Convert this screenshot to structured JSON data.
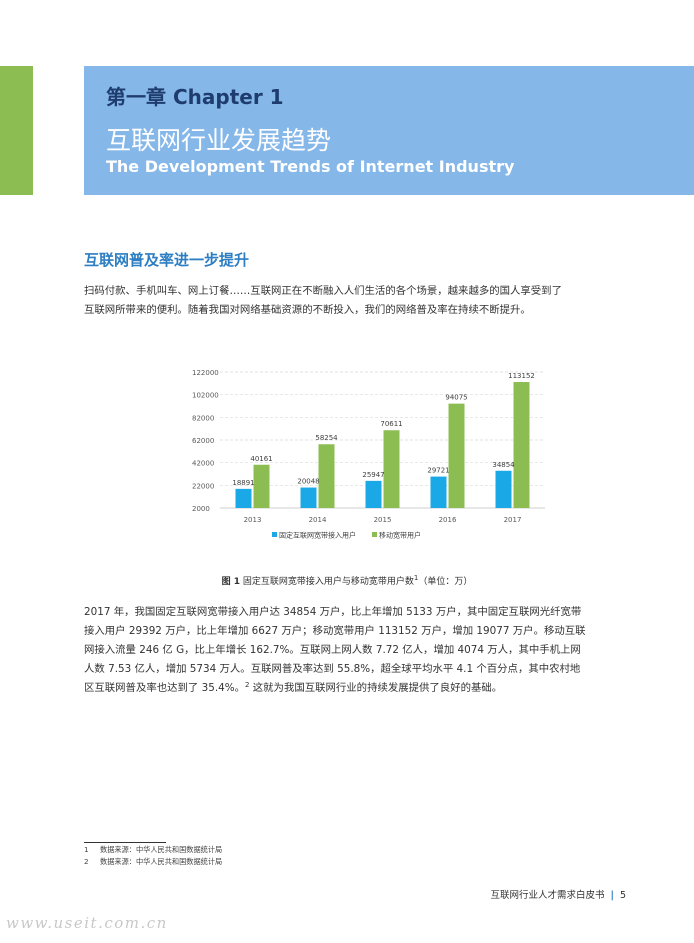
{
  "header": {
    "chapter_label": "第一章 Chapter 1",
    "title": "互联网行业发展趋势",
    "subtitle": "The Development Trends of Internet Industry"
  },
  "section": {
    "title": "互联网普及率进一步提升",
    "intro_lines": [
      "扫码付款、手机叫车、网上订餐……互联网正在不断融入人们生活的各个场景，越来越多的国人享受到了",
      "互联网所带来的便利。随着我国对网络基础资源的不断投入，我们的网络普及率在持续不断提升。"
    ]
  },
  "chart_data": {
    "type": "bar",
    "categories": [
      "2013",
      "2014",
      "2015",
      "2016",
      "2017"
    ],
    "series": [
      {
        "name": "固定互联网宽带接入用户",
        "values": [
          18891,
          20048,
          25947,
          29721,
          34854
        ],
        "color": "#1aa8e6"
      },
      {
        "name": "移动宽带用户",
        "values": [
          40161,
          58254,
          70611,
          94075,
          113152
        ],
        "color": "#8cbd52"
      }
    ],
    "y_ticks": [
      "2000",
      "22000",
      "42000",
      "62000",
      "82000",
      "102000",
      "122000"
    ],
    "ylim": [
      2000,
      122000
    ],
    "grid": true,
    "legend_position": "bottom"
  },
  "figure": {
    "number": "图 1",
    "caption": "固定互联网宽带接入用户与移动宽带用户数",
    "footnote_ref": "1",
    "unit_note": "（单位：万）"
  },
  "body": {
    "lines": [
      "2017 年，我国固定互联网宽带接入用户达 34854 万户，比上年增加 5133 万户，其中固定互联网光纤宽带",
      "接入用户 29392 万户，比上年增加 6627 万户；移动宽带用户 113152 万户，增加 19077 万户。移动互联",
      "网接入流量 246 亿 G，比上年增长 162.7%。互联网上网人数 7.72 亿人，增加 4074 万人，其中手机上网",
      "人数 7.53 亿人，增加 5734 万人。互联网普及率达到 55.8%，超全球平均水平 4.1 个百分点，其中农村地"
    ],
    "last_line_before": "区互联网普及率也达到了 35.4%。",
    "last_line_ref": "2",
    "last_line_after": "这就为我国互联网行业的持续发展提供了良好的基础。"
  },
  "footnotes": [
    {
      "num": "1",
      "text": "数据来源：中华人民共和国数据统计局"
    },
    {
      "num": "2",
      "text": "数据来源：中华人民共和国数据统计局"
    }
  ],
  "footer": {
    "title": "互联网行业人才需求白皮书",
    "separator": "|",
    "page": "5"
  },
  "watermark": "www.useit.com.cn",
  "colors": {
    "banner": "#85b7e9",
    "accent_green": "#8cbd52",
    "section_title": "#2d7ec2",
    "chapter_label": "#1f3c6e"
  }
}
